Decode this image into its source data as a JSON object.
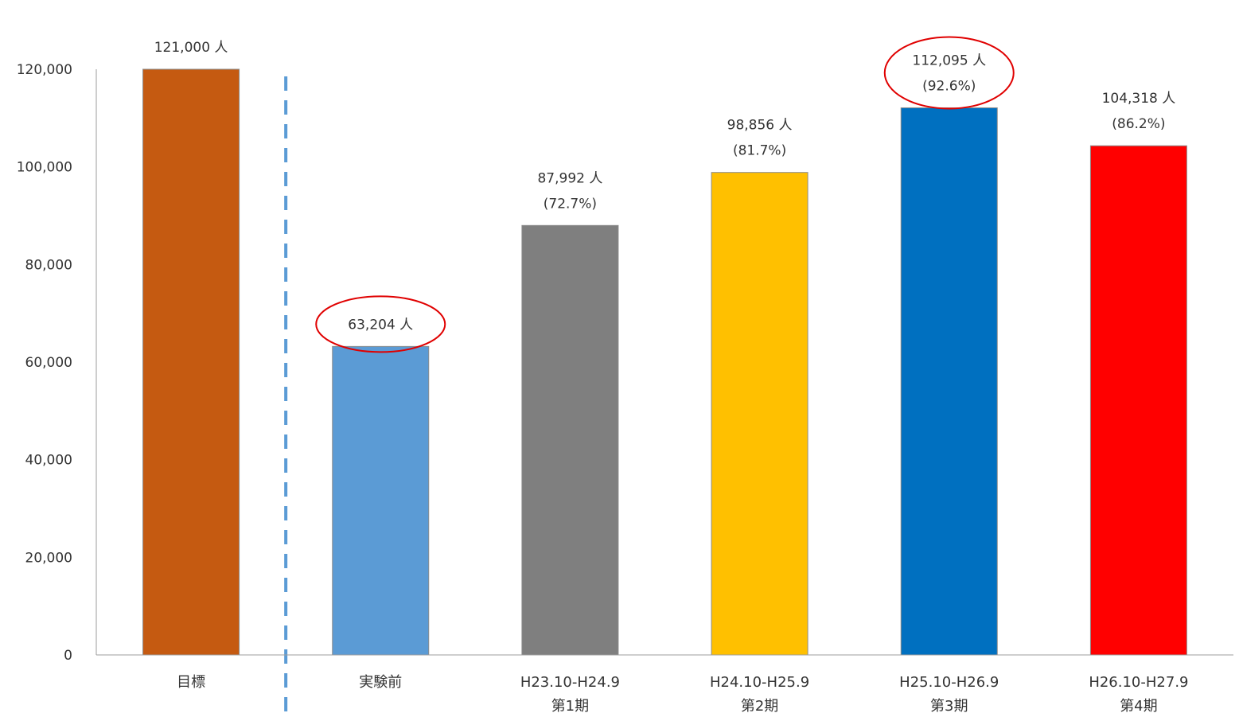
{
  "chart_data": {
    "type": "bar",
    "categories": [
      [
        "目標"
      ],
      [
        "実験前"
      ],
      [
        "H23.10-H24.9",
        "第1期"
      ],
      [
        "H24.10-H25.9",
        "第2期"
      ],
      [
        "H25.10-H26.9",
        "第3期"
      ],
      [
        "H26.10-H27.9",
        "第4期"
      ]
    ],
    "values": [
      121000,
      63204,
      87992,
      98856,
      112095,
      104318
    ],
    "labels": [
      [
        "121,000 人"
      ],
      [
        "63,204 人"
      ],
      [
        "87,992 人",
        "(72.7%)"
      ],
      [
        "98,856 人",
        "(81.7%)"
      ],
      [
        "112,095 人",
        "(92.6%)"
      ],
      [
        "104,318 人",
        "(86.2%)"
      ]
    ],
    "colors": [
      "#C55A11",
      "#5B9BD5",
      "#7F7F7F",
      "#FFC000",
      "#0070C0",
      "#FF0000"
    ],
    "highlighted": [
      1,
      4
    ],
    "highlight_color": "#E00000",
    "divider_color": "#5B9BD5",
    "ylim": [
      0,
      120000
    ],
    "yticks": [
      0,
      20000,
      40000,
      60000,
      80000,
      100000,
      120000
    ],
    "ytick_labels": [
      "0",
      "20,000",
      "40,000",
      "60,000",
      "80,000",
      "100,000",
      "120,000"
    ],
    "grid": false,
    "title": "",
    "xlabel": "",
    "ylabel": ""
  }
}
